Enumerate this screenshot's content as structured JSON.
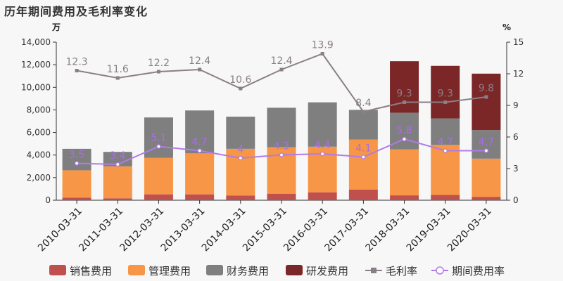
{
  "title": "历年期间费用及毛利率变化",
  "chart_data": {
    "type": "bar+line",
    "categories": [
      "2010-03-31",
      "2011-03-31",
      "2012-03-31",
      "2013-03-31",
      "2014-03-31",
      "2015-03-31",
      "2016-03-31",
      "2017-03-31",
      "2018-03-31",
      "2019-03-31",
      "2020-03-31"
    ],
    "left_unit": "万",
    "right_unit": "%",
    "left_ylim": [
      0,
      14000
    ],
    "left_ticks": [
      "0",
      "2,000",
      "4,000",
      "6,000",
      "8,000",
      "10,000",
      "12,000",
      "14,000"
    ],
    "right_ylim": [
      0,
      15
    ],
    "right_ticks": [
      "0",
      "3",
      "6",
      "9",
      "12",
      "15"
    ],
    "bar_series": [
      {
        "name": "销售费用",
        "color": "#c0504d",
        "values": [
          220,
          170,
          520,
          520,
          420,
          580,
          700,
          950,
          430,
          470,
          300
        ]
      },
      {
        "name": "管理费用",
        "color": "#f79646",
        "values": [
          2430,
          2830,
          3230,
          3630,
          4130,
          4120,
          4040,
          4430,
          4070,
          4430,
          3380
        ]
      },
      {
        "name": "财务费用",
        "color": "#7f7f7f",
        "values": [
          1900,
          1280,
          3580,
          3800,
          2850,
          3490,
          3930,
          2620,
          3250,
          2350,
          2530
        ]
      },
      {
        "name": "研发费用",
        "color": "#7b2727",
        "values": [
          0,
          0,
          0,
          0,
          0,
          0,
          0,
          0,
          4560,
          4650,
          5000
        ]
      }
    ],
    "line_series": [
      {
        "name": "毛利率",
        "color": "#8a7f86",
        "values": [
          12.3,
          11.6,
          12.2,
          12.4,
          10.6,
          12.4,
          13.9,
          8.4,
          9.3,
          9.3,
          9.8
        ],
        "labels": [
          "12.3",
          "11.6",
          "12.2",
          "12.4",
          "10.6",
          "12.4",
          "13.9",
          "8.4",
          "9.3",
          "9.3",
          "9.8"
        ]
      },
      {
        "name": "期间费用率",
        "color": "#b07be8",
        "values": [
          3.5,
          3.4,
          5.1,
          4.7,
          4.0,
          4.3,
          4.4,
          4.1,
          5.8,
          4.7,
          4.7
        ],
        "labels": [
          "3.5",
          "3.4",
          "5.1",
          "4.7",
          "4",
          "4.3",
          "4.4",
          "4.1",
          "5.8",
          "4.7",
          "4.7"
        ]
      }
    ],
    "legend": [
      "销售费用",
      "管理费用",
      "财务费用",
      "研发费用",
      "毛利率",
      "期间费用率"
    ],
    "legend_position": "bottom",
    "grid": false
  }
}
